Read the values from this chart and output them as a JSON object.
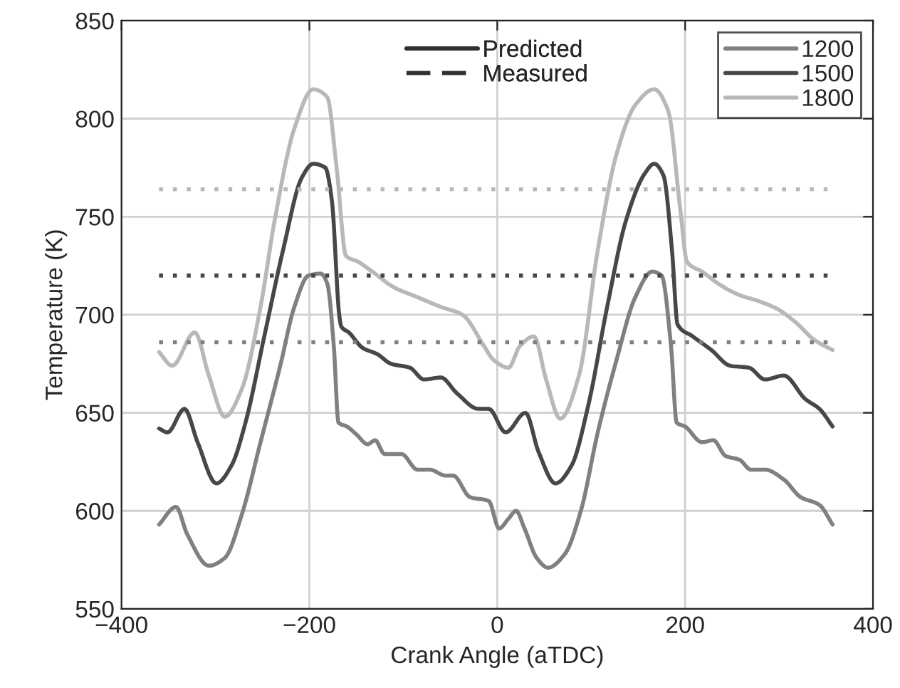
{
  "chart_data": {
    "type": "line",
    "xlabel": "Crank Angle (aTDC)",
    "ylabel": "Temperature (K)",
    "xlim": [
      -400,
      400
    ],
    "xticks": [
      {
        "value": -400,
        "label": "−400"
      },
      {
        "value": -200,
        "label": "−200"
      },
      0,
      200,
      400
    ],
    "ylim": [
      550,
      850
    ],
    "yticks": [
      550,
      600,
      650,
      700,
      750,
      800,
      850
    ],
    "grid": true,
    "legend": "top right",
    "line_style": "solid",
    "series": [
      {
        "name": "1200",
        "color": "#808080",
        "x": [
          -360,
          -342,
          -330,
          -307,
          -290,
          -272,
          -252,
          -231,
          -216,
          -201,
          -188,
          -181,
          -174,
          -169,
          -160,
          -150,
          -138,
          -130,
          -120,
          -102,
          -85,
          -72,
          -55,
          -47,
          -29,
          -9,
          2,
          12,
          20,
          29,
          42,
          54,
          72,
          89,
          107,
          127,
          147,
          165,
          175,
          185,
          191,
          200,
          218,
          230,
          243,
          258,
          270,
          285,
          305,
          323,
          343,
          357
        ],
        "values": [
          593,
          602,
          588,
          572,
          576,
          598,
          635,
          674,
          704,
          720,
          721,
          716,
          684,
          645,
          643,
          639,
          634,
          636,
          629,
          629,
          621,
          621,
          618,
          618,
          607,
          605,
          591,
          596,
          600,
          591,
          576,
          571,
          578,
          600,
          640,
          677,
          709,
          722,
          720,
          684,
          645,
          643,
          635,
          636,
          628,
          626,
          621,
          621,
          616,
          607,
          603,
          593
        ]
      },
      {
        "name": "1500",
        "color": "#474747",
        "x": [
          -360,
          -351,
          -333,
          -319,
          -299,
          -283,
          -268,
          -248,
          -228,
          -208,
          -196,
          -183,
          -176,
          -168,
          -166,
          -158,
          -143,
          -128,
          -113,
          -93,
          -78,
          -60,
          -43,
          -20,
          -9,
          9,
          30,
          44,
          62,
          79,
          97,
          117,
          137,
          157,
          167,
          177,
          186,
          192,
          208,
          228,
          248,
          268,
          285,
          305,
          328,
          343,
          357
        ],
        "values": [
          642,
          640,
          652,
          635,
          614,
          623,
          645,
          689,
          733,
          770,
          777,
          775,
          758,
          699,
          694,
          691,
          683,
          680,
          675,
          673,
          667,
          668,
          660,
          652,
          652,
          640,
          650,
          630,
          614,
          623,
          654,
          704,
          748,
          772,
          777,
          771,
          733,
          695,
          689,
          682,
          674,
          673,
          667,
          669,
          657,
          652,
          643
        ]
      },
      {
        "name": "1800",
        "color": "#b8b8b8",
        "x": [
          -360,
          -346,
          -322,
          -307,
          -290,
          -272,
          -252,
          -237,
          -216,
          -196,
          -181,
          -171,
          -161,
          -148,
          -133,
          -110,
          -85,
          -60,
          -37,
          -14,
          -4,
          12,
          24,
          39,
          52,
          67,
          87,
          107,
          127,
          147,
          167,
          182,
          195,
          202,
          218,
          238,
          258,
          278,
          298,
          318,
          338,
          357
        ],
        "values": [
          681,
          674,
          691,
          669,
          648,
          662,
          704,
          748,
          795,
          815,
          811,
          775,
          730,
          727,
          722,
          714,
          709,
          704,
          700,
          684,
          677,
          673,
          684,
          689,
          667,
          647,
          669,
          733,
          782,
          807,
          815,
          804,
          753,
          727,
          722,
          715,
          710,
          707,
          703,
          696,
          687,
          682
        ]
      },
      {
        "color": "#b8b8b8",
        "line_style": "dotted",
        "x": [
          -360,
          357
        ],
        "values": [
          764,
          764
        ]
      },
      {
        "color": "#474747",
        "line_style": "dotted",
        "x": [
          -360,
          357
        ],
        "values": [
          720,
          720
        ]
      },
      {
        "color": "#808080",
        "line_style": "dotted",
        "x": [
          -360,
          357
        ],
        "values": [
          686,
          686
        ]
      },
      {
        "name": "Predicted",
        "color": "#303030"
      },
      {
        "name": "Measured",
        "color": "#303030",
        "line_style": "dashed"
      }
    ]
  }
}
